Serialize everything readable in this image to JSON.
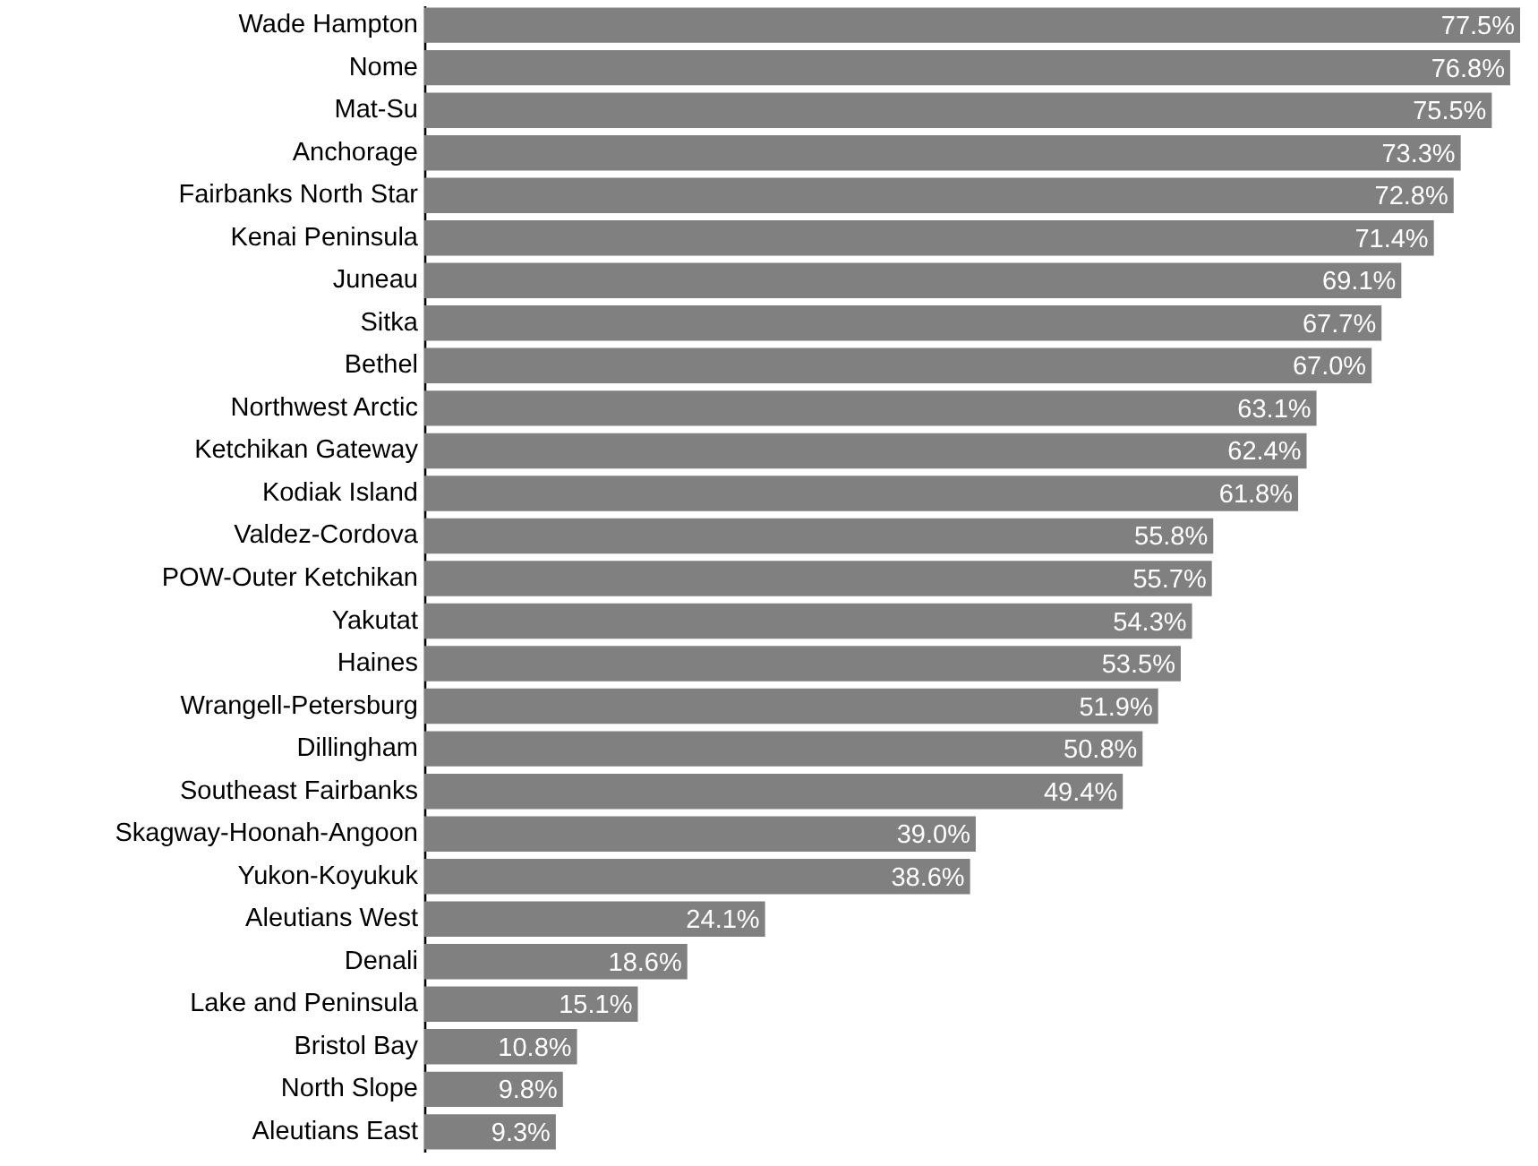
{
  "chart_data": {
    "type": "bar",
    "orientation": "horizontal",
    "color": "#808080",
    "categories": [
      "Wade Hampton",
      "Nome",
      "Mat-Su",
      "Anchorage",
      "Fairbanks North Star",
      "Kenai Peninsula",
      "Juneau",
      "Sitka",
      "Bethel",
      "Northwest Arctic",
      "Ketchikan Gateway",
      "Kodiak Island",
      "Valdez-Cordova",
      "POW-Outer Ketchikan",
      "Yakutat",
      "Haines",
      "Wrangell-Petersburg",
      "Dillingham",
      "Southeast Fairbanks",
      "Skagway-Hoonah-Angoon",
      "Yukon-Koyukuk",
      "Aleutians West",
      "Denali",
      "Lake and Peninsula",
      "Bristol Bay",
      "North Slope",
      "Aleutians East"
    ],
    "values": [
      77.5,
      76.8,
      75.5,
      73.3,
      72.8,
      71.4,
      69.1,
      67.7,
      67.0,
      63.1,
      62.4,
      61.8,
      55.8,
      55.7,
      54.3,
      53.5,
      51.9,
      50.8,
      49.4,
      39.0,
      38.6,
      24.1,
      18.6,
      15.1,
      10.8,
      9.8,
      9.3
    ],
    "value_labels": [
      "77.5%",
      "76.8%",
      "75.5%",
      "73.3%",
      "72.8%",
      "71.4%",
      "69.1%",
      "67.7%",
      "67.0%",
      "63.1%",
      "62.4%",
      "61.8%",
      "55.8%",
      "55.7%",
      "54.3%",
      "53.5%",
      "51.9%",
      "50.8%",
      "49.4%",
      "39.0%",
      "38.6%",
      "24.1%",
      "18.6%",
      "15.1%",
      "10.8%",
      "9.8%",
      "9.3%"
    ]
  }
}
